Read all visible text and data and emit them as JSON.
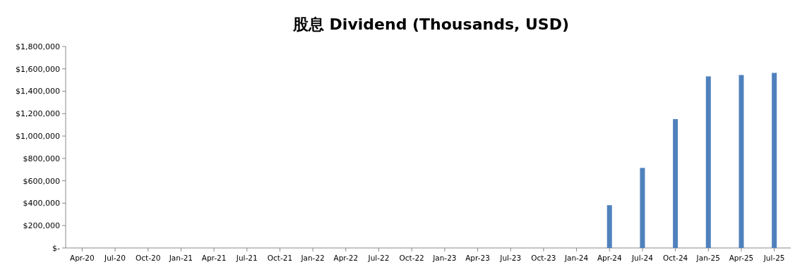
{
  "chart_data": {
    "type": "bar",
    "title": "股息 Dividend (Thousands, USD)",
    "categories": [
      "Apr-20",
      "Jul-20",
      "Oct-20",
      "Jan-21",
      "Apr-21",
      "Jul-21",
      "Oct-21",
      "Jan-22",
      "Apr-22",
      "Jul-22",
      "Oct-22",
      "Jan-23",
      "Apr-23",
      "Jul-23",
      "Oct-23",
      "Jan-24",
      "Apr-24",
      "Jul-24",
      "Oct-24",
      "Jan-25",
      "Apr-25",
      "Jul-25"
    ],
    "values": [
      null,
      null,
      null,
      null,
      null,
      null,
      null,
      null,
      null,
      null,
      null,
      null,
      null,
      null,
      null,
      null,
      382000,
      715000,
      1151000,
      1533000,
      1545000,
      1564000
    ],
    "color": "#4f81bd",
    "ylim": [
      0,
      1800000
    ],
    "yticks": [
      {
        "value": 0,
        "label": "$-"
      },
      {
        "value": 200000,
        "label": "$200,000"
      },
      {
        "value": 400000,
        "label": "$400,000"
      },
      {
        "value": 600000,
        "label": "$600,000"
      },
      {
        "value": 800000,
        "label": "$800,000"
      },
      {
        "value": 1000000,
        "label": "$1,000,000"
      },
      {
        "value": 1200000,
        "label": "$1,200,000"
      },
      {
        "value": 1400000,
        "label": "$1,400,000"
      },
      {
        "value": 1600000,
        "label": "$1,600,000"
      },
      {
        "value": 1800000,
        "label": "$1,800,000"
      }
    ],
    "grid": false
  }
}
